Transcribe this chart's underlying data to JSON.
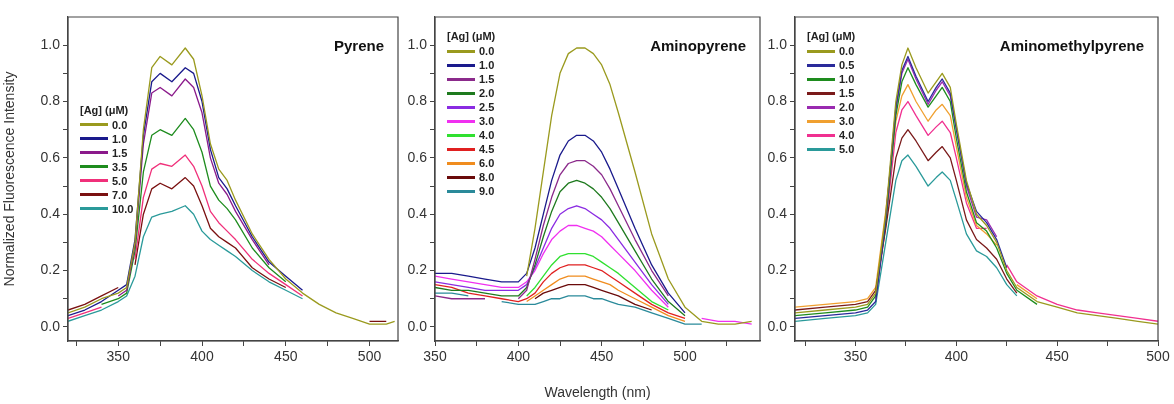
{
  "chart_data": [
    {
      "type": "line",
      "title": "Pyrene",
      "ylabel": "Normalized Fluorescence Intensity",
      "legend_title": "[Ag] (μM)",
      "legend": "left",
      "xlim": [
        320,
        517
      ],
      "ylim": [
        -0.05,
        1.1
      ],
      "xticks": [
        {
          "value": 325,
          "label": null
        },
        350,
        {
          "value": 375,
          "label": null
        },
        400,
        {
          "value": 425,
          "label": null
        },
        450,
        {
          "value": 475,
          "label": null
        },
        500
      ],
      "yticks": [
        {
          "value": 0,
          "label": "0.0"
        },
        {
          "value": 0.1,
          "label": null
        },
        {
          "value": 0.2,
          "label": "0.2"
        },
        {
          "value": 0.3,
          "label": null
        },
        {
          "value": 0.4,
          "label": "0.4"
        },
        {
          "value": 0.5,
          "label": null
        },
        {
          "value": 0.6,
          "label": "0.6"
        },
        {
          "value": 0.7,
          "label": null
        },
        {
          "value": 0.8,
          "label": "0.8"
        },
        {
          "value": 0.9,
          "label": null
        },
        {
          "value": 1,
          "label": "1.0"
        }
      ],
      "x": [
        320,
        330,
        340,
        350,
        355,
        360,
        365,
        370,
        375,
        382,
        390,
        395,
        400,
        405,
        410,
        415,
        420,
        430,
        440,
        450,
        460,
        470,
        480,
        490,
        500,
        510,
        515
      ],
      "series": [
        {
          "name": "0.0",
          "color": "#9a9a1e",
          "values": [
            0.05,
            0.07,
            0.1,
            0.12,
            0.14,
            0.3,
            0.7,
            0.92,
            0.96,
            0.93,
            0.99,
            0.95,
            0.82,
            0.65,
            0.56,
            0.52,
            0.45,
            0.33,
            0.24,
            0.17,
            0.12,
            0.08,
            0.05,
            0.03,
            0.01,
            0.01,
            0.02
          ]
        },
        {
          "name": "1.0",
          "color": "#1a1a8c",
          "values": [
            0.04,
            0.06,
            0.09,
            0.13,
            0.15,
            0.31,
            0.68,
            0.87,
            0.9,
            0.87,
            0.92,
            0.9,
            0.8,
            0.63,
            0.53,
            0.49,
            0.43,
            0.32,
            0.23,
            0.18,
            0.13,
            null,
            null,
            null,
            null,
            null,
            null
          ]
        },
        {
          "name": "1.5",
          "color": "#8b1a8b",
          "values": [
            null,
            null,
            null,
            0.11,
            0.13,
            0.29,
            0.65,
            0.83,
            0.85,
            0.82,
            0.88,
            0.85,
            0.76,
            0.6,
            0.51,
            0.47,
            0.41,
            0.31,
            0.22,
            null,
            null,
            null,
            null,
            null,
            null,
            null,
            null
          ]
        },
        {
          "name": "3.5",
          "color": "#1e8c1e",
          "values": [
            null,
            null,
            0.08,
            0.1,
            0.12,
            0.27,
            0.55,
            0.68,
            0.7,
            0.68,
            0.74,
            0.7,
            0.62,
            0.5,
            0.45,
            0.42,
            0.38,
            0.28,
            0.21,
            0.16,
            null,
            null,
            null,
            null,
            null,
            null,
            null
          ]
        },
        {
          "name": "5.0",
          "color": "#f0307a",
          "values": [
            0.03,
            0.05,
            0.07,
            null,
            null,
            0.24,
            0.46,
            0.56,
            0.58,
            0.57,
            0.61,
            0.57,
            0.5,
            0.41,
            0.37,
            0.34,
            0.31,
            0.24,
            0.19,
            0.15,
            0.11,
            null,
            null,
            null,
            null,
            null,
            null
          ]
        },
        {
          "name": "7.0",
          "color": "#7a1010",
          "values": [
            0.06,
            0.08,
            0.11,
            0.14,
            null,
            0.22,
            0.4,
            0.49,
            0.51,
            0.49,
            0.53,
            0.5,
            0.43,
            0.35,
            0.32,
            0.3,
            0.28,
            0.21,
            0.17,
            0.14,
            null,
            null,
            null,
            null,
            0.02,
            0.02,
            null
          ]
        },
        {
          "name": "10.0",
          "color": "#2a9a9a",
          "values": [
            0.02,
            0.04,
            0.06,
            0.09,
            0.11,
            0.18,
            0.32,
            0.39,
            0.4,
            0.41,
            0.43,
            0.4,
            0.34,
            0.31,
            0.29,
            0.27,
            0.25,
            0.2,
            0.16,
            0.13,
            0.1,
            null,
            null,
            null,
            null,
            null,
            null
          ]
        }
      ]
    },
    {
      "type": "line",
      "title": "Aminopyrene",
      "xlabel": "Wavelength (nm)",
      "legend_title": "[Ag] (μM)",
      "legend": "top left",
      "xlim": [
        350,
        545
      ],
      "ylim": [
        -0.05,
        1.1
      ],
      "xticks": [
        350,
        {
          "value": 375,
          "label": null
        },
        400,
        {
          "value": 425,
          "label": null
        },
        450,
        {
          "value": 475,
          "label": null
        },
        500,
        {
          "value": 525,
          "label": null
        }
      ],
      "yticks": [
        {
          "value": 0,
          "label": "0.0"
        },
        {
          "value": 0.1,
          "label": null
        },
        {
          "value": 0.2,
          "label": "0.2"
        },
        {
          "value": 0.3,
          "label": null
        },
        {
          "value": 0.4,
          "label": "0.4"
        },
        {
          "value": 0.5,
          "label": null
        },
        {
          "value": 0.6,
          "label": "0.6"
        },
        {
          "value": 0.7,
          "label": null
        },
        {
          "value": 0.8,
          "label": "0.8"
        },
        {
          "value": 0.9,
          "label": null
        },
        {
          "value": 1,
          "label": "1.0"
        }
      ],
      "x": [
        350,
        360,
        370,
        380,
        390,
        400,
        405,
        410,
        415,
        420,
        425,
        430,
        435,
        440,
        445,
        450,
        455,
        460,
        470,
        480,
        490,
        500,
        510,
        520,
        530,
        540
      ],
      "series": [
        {
          "name": "0.0",
          "color": "#9a9a1e",
          "values": [
            null,
            null,
            null,
            null,
            null,
            null,
            0.18,
            0.35,
            0.55,
            0.75,
            0.9,
            0.97,
            0.99,
            0.99,
            0.97,
            0.93,
            0.86,
            0.76,
            0.55,
            0.33,
            0.17,
            0.07,
            0.02,
            0.01,
            0.01,
            0.02
          ]
        },
        {
          "name": "1.0",
          "color": "#1a1a8c",
          "values": [
            0.19,
            0.19,
            0.18,
            0.17,
            0.16,
            0.16,
            0.19,
            0.28,
            0.4,
            0.52,
            0.61,
            0.66,
            0.68,
            0.68,
            0.66,
            0.62,
            0.56,
            0.49,
            0.35,
            0.22,
            0.12,
            0.05,
            null,
            null,
            null,
            null
          ]
        },
        {
          "name": "1.5",
          "color": "#8b2a8b",
          "values": [
            0.11,
            0.1,
            0.1,
            0.1,
            null,
            0.1,
            0.13,
            0.24,
            0.36,
            0.46,
            0.54,
            0.58,
            0.59,
            0.59,
            0.57,
            0.54,
            0.49,
            0.43,
            0.31,
            0.2,
            0.11,
            null,
            null,
            null,
            null,
            null
          ]
        },
        {
          "name": "2.0",
          "color": "#1e7a1e",
          "values": [
            0.14,
            0.13,
            0.13,
            0.12,
            0.11,
            0.11,
            0.14,
            0.22,
            0.32,
            0.41,
            0.48,
            0.51,
            0.52,
            0.51,
            0.49,
            0.46,
            0.42,
            0.37,
            0.27,
            0.17,
            0.09,
            0.04,
            null,
            null,
            null,
            null
          ]
        },
        {
          "name": "2.5",
          "color": "#8a2be2",
          "values": [
            0.16,
            0.15,
            0.14,
            0.13,
            0.13,
            0.13,
            0.15,
            0.21,
            0.28,
            0.35,
            0.4,
            0.42,
            0.43,
            0.42,
            0.4,
            0.38,
            0.35,
            0.31,
            0.23,
            0.15,
            0.08,
            null,
            null,
            null,
            null,
            null
          ]
        },
        {
          "name": "3.0",
          "color": "#f030f0",
          "values": [
            0.18,
            0.17,
            0.16,
            0.15,
            0.14,
            0.14,
            0.16,
            0.2,
            0.26,
            0.31,
            0.34,
            0.36,
            0.36,
            0.35,
            0.34,
            0.32,
            0.29,
            0.26,
            0.2,
            0.13,
            0.07,
            null,
            0.03,
            0.02,
            0.02,
            0.01
          ]
        },
        {
          "name": "4.0",
          "color": "#30e030",
          "values": [
            null,
            null,
            null,
            null,
            null,
            null,
            0.11,
            0.14,
            0.18,
            0.22,
            0.25,
            0.26,
            0.26,
            0.26,
            0.25,
            0.23,
            0.21,
            0.19,
            0.14,
            0.09,
            0.06,
            null,
            null,
            null,
            null,
            null
          ]
        },
        {
          "name": "4.5",
          "color": "#e02020",
          "values": [
            0.15,
            0.14,
            0.12,
            0.11,
            0.1,
            0.09,
            0.1,
            0.12,
            0.16,
            0.19,
            0.21,
            0.22,
            0.22,
            0.22,
            0.21,
            0.2,
            0.18,
            0.16,
            0.12,
            0.08,
            0.05,
            0.03,
            null,
            null,
            null,
            null
          ]
        },
        {
          "name": "6.0",
          "color": "#f08c1e",
          "values": [
            null,
            null,
            null,
            null,
            null,
            null,
            0.09,
            0.11,
            0.13,
            0.15,
            0.17,
            0.18,
            0.18,
            0.18,
            0.17,
            0.16,
            0.15,
            0.13,
            0.1,
            0.07,
            0.04,
            0.02,
            null,
            null,
            null,
            null
          ]
        },
        {
          "name": "8.0",
          "color": "#6a0a0a",
          "values": [
            null,
            null,
            null,
            null,
            null,
            null,
            null,
            0.1,
            0.12,
            0.13,
            0.14,
            0.15,
            0.15,
            0.15,
            0.14,
            0.13,
            0.12,
            0.11,
            0.08,
            0.06,
            null,
            null,
            null,
            null,
            null,
            null
          ]
        },
        {
          "name": "9.0",
          "color": "#2a8a9a",
          "values": [
            0.12,
            0.12,
            0.11,
            null,
            0.09,
            0.08,
            0.08,
            0.08,
            0.09,
            0.1,
            0.1,
            0.11,
            0.11,
            0.11,
            0.1,
            0.1,
            0.09,
            0.08,
            0.07,
            0.05,
            0.03,
            0.01,
            0.01,
            null,
            null,
            null
          ]
        }
      ]
    },
    {
      "type": "line",
      "title": "Aminomethylpyrene",
      "legend_title": "[Ag] (μM)",
      "legend": "top left",
      "xlim": [
        320,
        500
      ],
      "ylim": [
        -0.05,
        1.1
      ],
      "xticks": [
        {
          "value": 325,
          "label": null
        },
        350,
        {
          "value": 375,
          "label": null
        },
        400,
        {
          "value": 425,
          "label": null
        },
        450,
        {
          "value": 475,
          "label": null
        },
        500
      ],
      "yticks": [
        {
          "value": 0,
          "label": "0.0"
        },
        {
          "value": 0.1,
          "label": null
        },
        {
          "value": 0.2,
          "label": "0.2"
        },
        {
          "value": 0.3,
          "label": null
        },
        {
          "value": 0.4,
          "label": "0.4"
        },
        {
          "value": 0.5,
          "label": null
        },
        {
          "value": 0.6,
          "label": "0.6"
        },
        {
          "value": 0.7,
          "label": null
        },
        {
          "value": 0.8,
          "label": "0.8"
        },
        {
          "value": 0.9,
          "label": null
        },
        {
          "value": 1,
          "label": "1.0"
        }
      ],
      "x": [
        320,
        335,
        350,
        356,
        360,
        365,
        370,
        373,
        376,
        380,
        386,
        390,
        393,
        397,
        400,
        405,
        410,
        415,
        420,
        425,
        430,
        440,
        450,
        460,
        470,
        480,
        490,
        500
      ],
      "series": [
        {
          "name": "0.0",
          "color": "#9a9a1e",
          "values": [
            0.05,
            0.06,
            0.07,
            0.08,
            0.12,
            0.4,
            0.8,
            0.93,
            0.99,
            0.92,
            0.83,
            0.87,
            0.9,
            0.85,
            0.72,
            0.52,
            0.4,
            0.36,
            0.3,
            0.2,
            0.14,
            0.09,
            0.07,
            0.05,
            0.04,
            0.03,
            0.02,
            0.01
          ]
        },
        {
          "name": "0.5",
          "color": "#2a2a9a",
          "values": [
            0.03,
            0.04,
            0.05,
            0.06,
            0.09,
            0.38,
            0.78,
            0.91,
            0.96,
            0.89,
            0.8,
            0.85,
            0.88,
            0.83,
            0.7,
            0.51,
            0.41,
            0.37,
            0.31,
            0.21,
            null,
            null,
            null,
            null,
            null,
            null,
            null,
            null
          ]
        },
        {
          "name": "1.0",
          "color": "#1e8c1e",
          "values": [
            0.04,
            0.05,
            0.06,
            0.07,
            0.11,
            0.37,
            0.75,
            0.87,
            0.92,
            0.86,
            0.78,
            0.82,
            0.85,
            0.8,
            0.67,
            0.48,
            0.37,
            0.34,
            0.28,
            0.19,
            0.13,
            0.08,
            null,
            null,
            null,
            null,
            null,
            null
          ]
        },
        {
          "name": "1.5",
          "color": "#7a1a1a",
          "values": [
            0.06,
            0.07,
            0.08,
            0.09,
            0.13,
            0.35,
            0.6,
            0.67,
            0.7,
            0.66,
            0.59,
            0.62,
            0.64,
            0.6,
            0.52,
            0.38,
            0.31,
            0.28,
            0.24,
            0.17,
            0.12,
            null,
            null,
            null,
            null,
            null,
            null,
            null
          ]
        },
        {
          "name": "2.0",
          "color": "#9a2ab0",
          "values": [
            null,
            null,
            null,
            null,
            null,
            0.39,
            0.77,
            0.9,
            0.95,
            0.88,
            0.79,
            0.84,
            0.87,
            0.82,
            0.71,
            0.5,
            0.39,
            0.38,
            0.32,
            null,
            null,
            null,
            null,
            null,
            null,
            null,
            null,
            null
          ]
        },
        {
          "name": "3.0",
          "color": "#f0a030",
          "values": [
            0.07,
            0.08,
            0.09,
            0.1,
            0.14,
            0.41,
            0.73,
            0.82,
            0.86,
            0.8,
            0.73,
            0.77,
            0.79,
            0.75,
            0.64,
            0.46,
            0.36,
            0.33,
            0.29,
            null,
            0.15,
            0.1,
            null,
            null,
            null,
            null,
            null,
            null
          ]
        },
        {
          "name": "4.0",
          "color": "#f03090",
          "values": [
            null,
            null,
            null,
            null,
            0.1,
            0.36,
            0.69,
            0.77,
            0.8,
            0.75,
            0.68,
            0.71,
            0.73,
            0.69,
            0.6,
            0.44,
            0.35,
            0.35,
            null,
            0.22,
            0.16,
            0.11,
            0.08,
            0.06,
            0.05,
            0.04,
            0.03,
            0.02
          ]
        },
        {
          "name": "5.0",
          "color": "#2a9a9a",
          "values": [
            0.02,
            0.03,
            0.04,
            0.05,
            0.08,
            0.3,
            0.52,
            0.59,
            0.61,
            0.57,
            0.5,
            0.53,
            0.55,
            0.52,
            0.45,
            0.33,
            0.27,
            0.25,
            0.21,
            0.15,
            0.11,
            null,
            null,
            null,
            null,
            null,
            null,
            null
          ]
        }
      ]
    }
  ]
}
